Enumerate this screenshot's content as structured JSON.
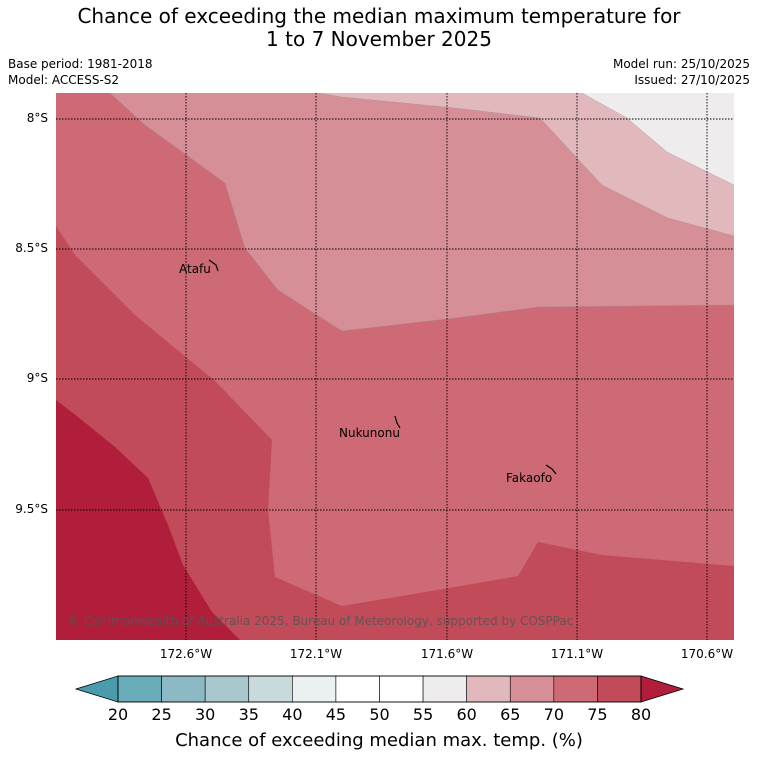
{
  "title_line1": "Chance of exceeding the median maximum temperature for",
  "title_line2": "1 to 7 November 2025",
  "base_period": "Base period: 1981-2018",
  "model": "Model: ACCESS-S2",
  "model_run": "Model run: 25/10/2025",
  "issued": "Issued: 27/10/2025",
  "lat_ticks": [
    "8°S",
    "8.5°S",
    "9°S",
    "9.5°S"
  ],
  "lon_ticks": [
    "172.6°W",
    "172.1°W",
    "171.6°W",
    "171.1°W",
    "170.6°W"
  ],
  "places": {
    "atafu": "Atafu",
    "nukunonu": "Nukunonu",
    "fakaofo": "Fakaofo"
  },
  "copyright": "© Commonwealth of Australia 2025, Bureau of Meteorology, supported by COSPPac",
  "colorbar": {
    "ticks": [
      "20",
      "25",
      "30",
      "35",
      "40",
      "45",
      "50",
      "55",
      "60",
      "65",
      "70",
      "75",
      "80"
    ],
    "colors": [
      "#69adbb",
      "#8cb9c3",
      "#a9c8cd",
      "#c9dadd",
      "#ebf0f1",
      "#ffffff",
      "#ffffff",
      "#eeeced",
      "#e1b9bd",
      "#d68e97",
      "#cd6a75",
      "#c14b58"
    ],
    "under_color": "#4a9cad",
    "over_color": "#b01e3b",
    "title": "Chance of exceeding median max. temp. (%)"
  },
  "map_colors": {
    "above_80": "#b01e3b",
    "75_80": "#c14b58",
    "70_75": "#cd6a75",
    "65_70": "#d68e97",
    "60_65": "#e1b9bd",
    "55_60": "#eeeced"
  }
}
